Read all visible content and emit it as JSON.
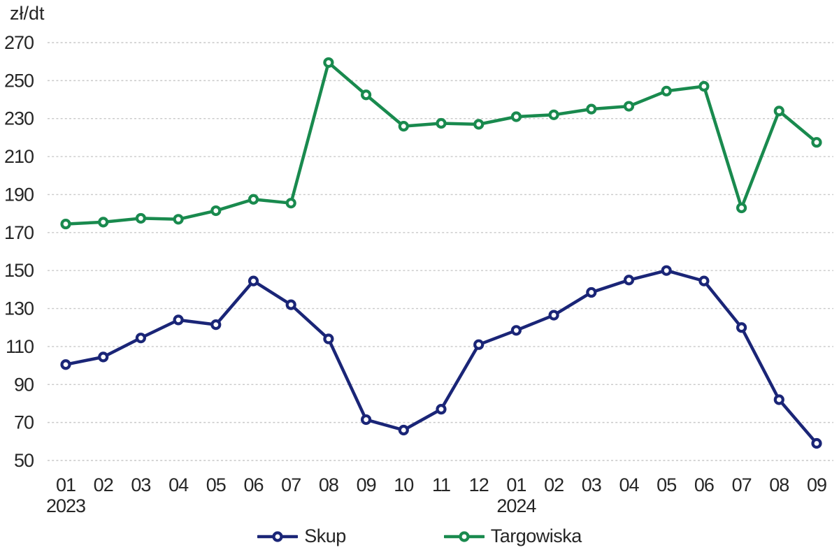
{
  "chart_data": {
    "type": "line",
    "unit_label": "zł/dt",
    "x_months": [
      "01",
      "02",
      "03",
      "04",
      "05",
      "06",
      "07",
      "08",
      "09",
      "10",
      "11",
      "12",
      "01",
      "02",
      "03",
      "04",
      "05",
      "06",
      "07",
      "08",
      "09"
    ],
    "x_year_labels": [
      {
        "index": 0,
        "label": "2023"
      },
      {
        "index": 12,
        "label": "2024"
      }
    ],
    "y_ticks": [
      270,
      250,
      230,
      210,
      190,
      170,
      150,
      130,
      110,
      90,
      70,
      50
    ],
    "ylim": [
      50,
      270
    ],
    "grid": "horizontal-dashed",
    "legend_position": "bottom-center",
    "series": [
      {
        "name": "Skup",
        "color": "#1a2577",
        "values": [
          100.5,
          104.5,
          114.5,
          124,
          121.5,
          144.5,
          132,
          114,
          71.5,
          66,
          77,
          111,
          118.5,
          126.5,
          138.5,
          145,
          150,
          144.5,
          120,
          82,
          59
        ]
      },
      {
        "name": "Targowiska",
        "color": "#198a4e",
        "values": [
          174.5,
          175.5,
          177.5,
          177,
          181.5,
          187.5,
          185.5,
          259.5,
          242.5,
          226,
          227.5,
          227,
          231,
          232,
          235,
          236.5,
          244.5,
          247,
          183,
          234,
          217.5
        ]
      }
    ]
  },
  "style_colors": {
    "gridline": "#c9c9c9",
    "text": "#262626",
    "background": "#ffffff"
  }
}
